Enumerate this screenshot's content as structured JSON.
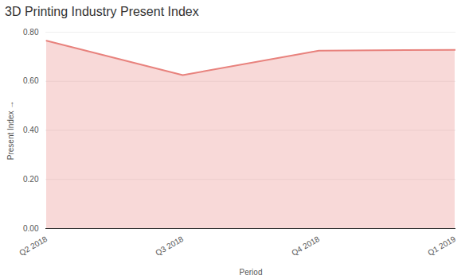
{
  "chart_data": {
    "type": "area",
    "title": "3D Printing Industry Present Index",
    "x_label": "Period",
    "y_label": "Present Index",
    "categories": [
      "Q2 2018",
      "Q3 2018",
      "Q4 2018",
      "Q1 2019"
    ],
    "values": [
      0.765,
      0.625,
      0.725,
      0.728
    ],
    "color": "#e8827d",
    "ylim": [
      0,
      0.8
    ],
    "yticks": [
      {
        "value": 0,
        "label": "0.00"
      },
      {
        "value": 0.2,
        "label": "0.20"
      },
      {
        "value": 0.4,
        "label": "0.40"
      },
      {
        "value": 0.6,
        "label": "0.60"
      },
      {
        "value": 0.8,
        "label": "0.80"
      }
    ],
    "grid": true
  }
}
